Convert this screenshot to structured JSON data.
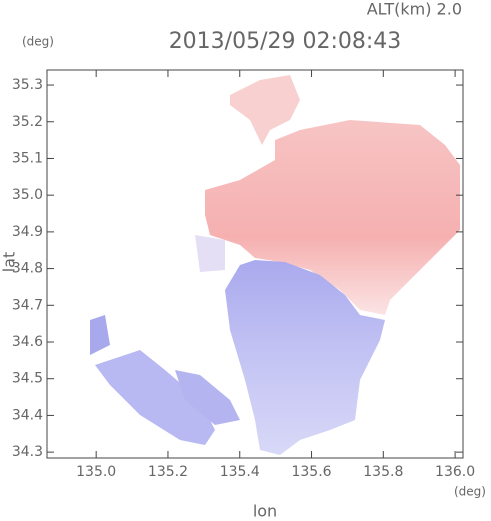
{
  "chart_data": {
    "type": "map",
    "title": "2013/05/29 02:08:43",
    "subtitle": "ALT(km) 2.0",
    "y_unit": "(deg)",
    "x_unit": "(deg)",
    "x_label": "lon",
    "y_label": "lat",
    "xlim": [
      134.863,
      136.022
    ],
    "ylim": [
      34.284,
      35.341
    ],
    "xticks": [
      {
        "value": 135.0,
        "label": "135.0"
      },
      135.2,
      135.4,
      135.6,
      135.8,
      {
        "value": 136.0,
        "label": "136.0"
      }
    ],
    "yticks": [
      34.3,
      34.4,
      34.5,
      34.6,
      34.7,
      34.8,
      34.9,
      {
        "value": 35.0,
        "label": "35.0"
      },
      35.1,
      35.2,
      35.3
    ]
  }
}
